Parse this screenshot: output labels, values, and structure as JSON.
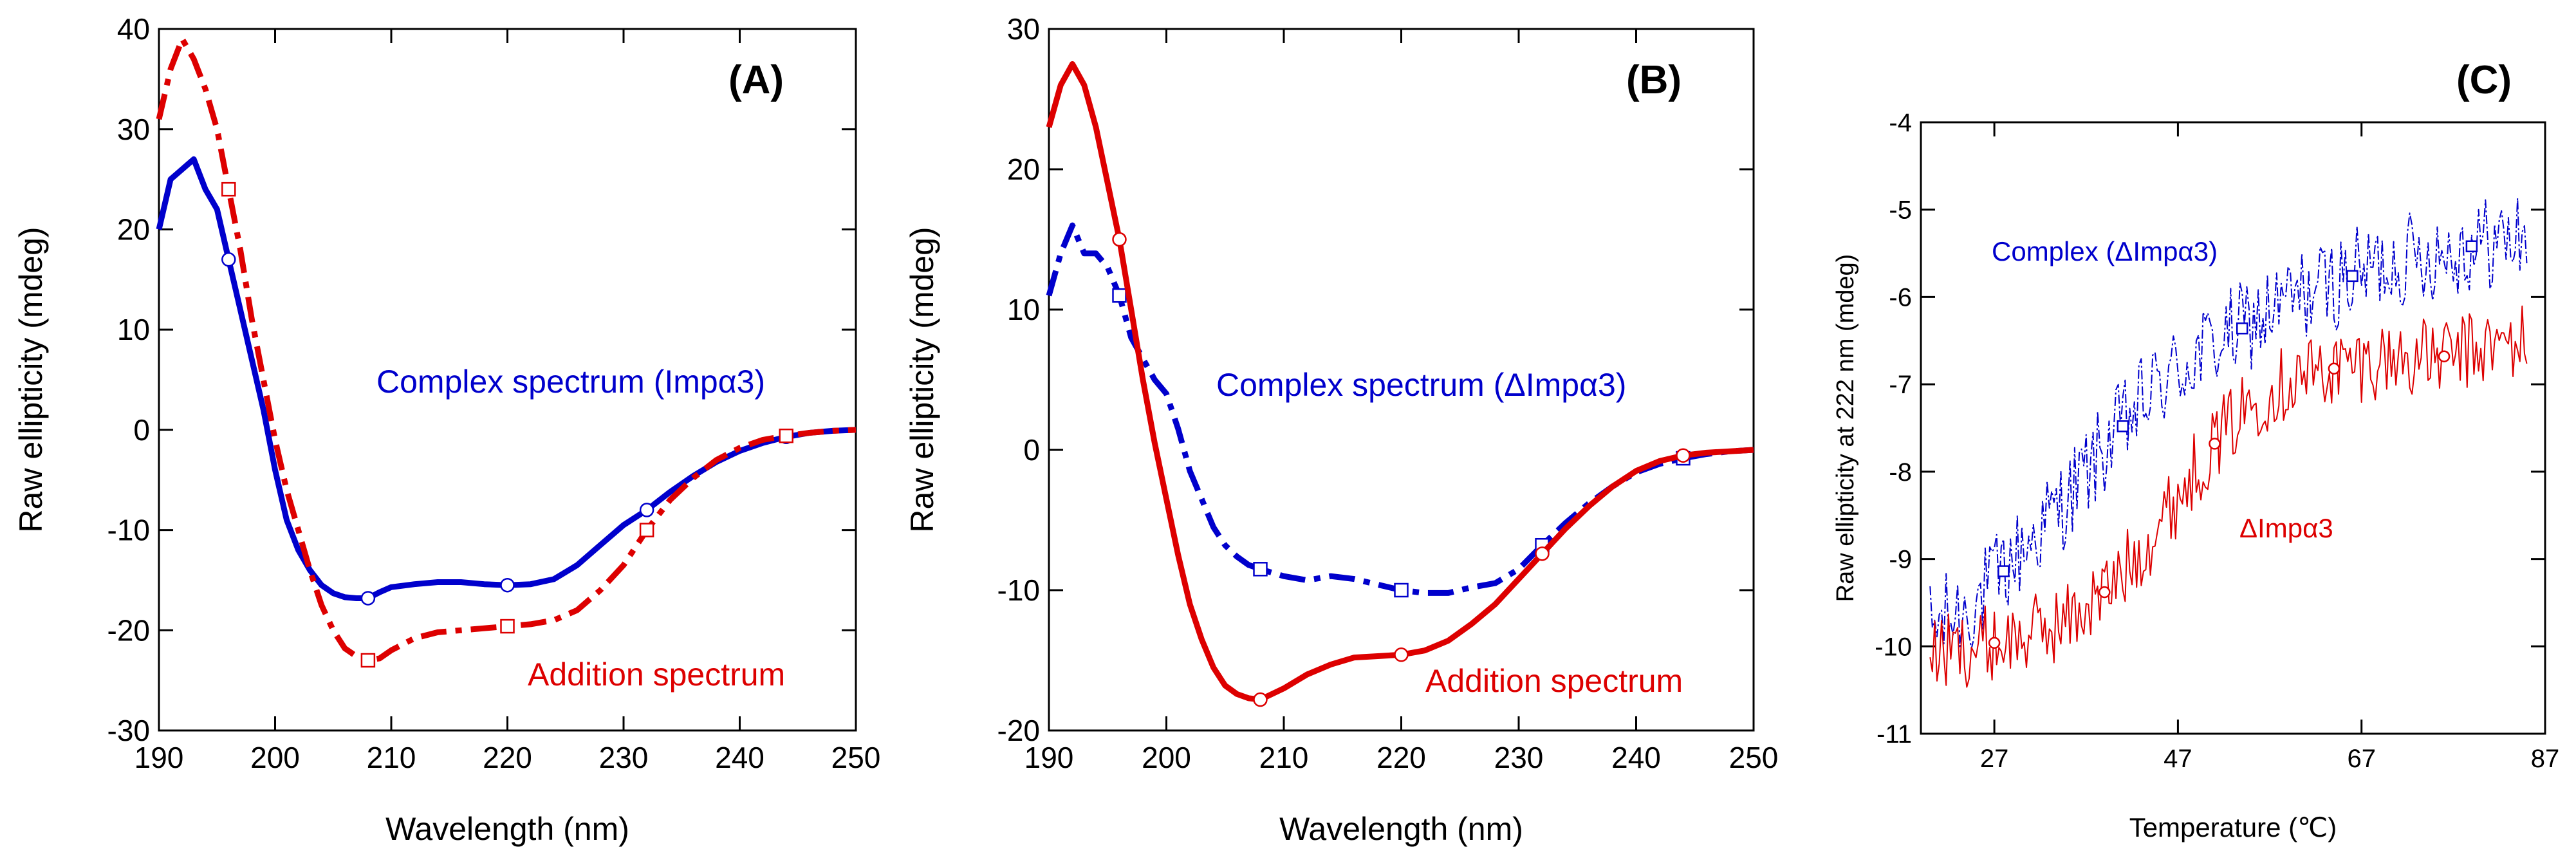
{
  "chart_data": [
    {
      "panel_label": "(A)",
      "type": "line",
      "xlabel": "Wavelength (nm)",
      "ylabel": "Raw ellipticity (mdeg)",
      "xlim": [
        190,
        250
      ],
      "ylim": [
        -30,
        40
      ],
      "xticks": [
        190,
        200,
        210,
        220,
        230,
        240,
        250
      ],
      "yticks": [
        -30,
        -20,
        -10,
        0,
        10,
        20,
        30,
        40
      ],
      "series": [
        {
          "name": "Complex spectrum (Impα3)",
          "color": "#0000cc",
          "dash": "solid",
          "marker": "circle",
          "marker_x": [
            196,
            208,
            220,
            232,
            244
          ],
          "x": [
            190,
            191,
            192,
            193,
            194,
            195,
            196,
            197,
            198,
            199,
            200,
            201,
            202,
            203,
            204,
            205,
            206,
            207,
            208,
            209,
            210,
            212,
            214,
            216,
            218,
            220,
            222,
            224,
            226,
            228,
            230,
            232,
            234,
            236,
            238,
            240,
            242,
            244,
            246,
            248,
            250
          ],
          "y": [
            20,
            25,
            26,
            27,
            24,
            22,
            17,
            12,
            7,
            2,
            -4,
            -9,
            -12,
            -14,
            -15.5,
            -16.3,
            -16.7,
            -16.8,
            -16.8,
            -16.2,
            -15.7,
            -15.4,
            -15.2,
            -15.2,
            -15.4,
            -15.5,
            -15.4,
            -14.9,
            -13.5,
            -11.5,
            -9.5,
            -8,
            -6.2,
            -4.6,
            -3.2,
            -2.1,
            -1.3,
            -0.7,
            -0.3,
            -0.1,
            0
          ]
        },
        {
          "name": "Addition spectrum",
          "color": "#dd0000",
          "dash": "dashdot",
          "marker": "square",
          "marker_x": [
            196,
            208,
            220,
            232,
            244
          ],
          "x": [
            190,
            191,
            192,
            193,
            194,
            195,
            196,
            197,
            198,
            199,
            200,
            201,
            202,
            203,
            204,
            205,
            206,
            207,
            208,
            209,
            210,
            212,
            214,
            216,
            218,
            220,
            222,
            224,
            226,
            228,
            230,
            232,
            234,
            236,
            238,
            240,
            242,
            244,
            246,
            248,
            250
          ],
          "y": [
            31,
            36,
            39,
            37,
            34,
            30,
            24,
            18,
            11,
            5,
            -1,
            -6,
            -10,
            -14,
            -17.5,
            -20,
            -21.8,
            -22.6,
            -23,
            -22.8,
            -22,
            -20.8,
            -20.2,
            -20,
            -19.8,
            -19.6,
            -19.4,
            -19,
            -18,
            -16,
            -13.5,
            -10,
            -7,
            -4.8,
            -3,
            -1.8,
            -1,
            -0.6,
            -0.3,
            -0.1,
            0
          ]
        }
      ],
      "annotations": [
        {
          "text": "Complex spectrum (Impα3)",
          "color": "#0000cc"
        },
        {
          "text": "Addition spectrum",
          "color": "#dd0000"
        }
      ]
    },
    {
      "panel_label": "(B)",
      "type": "line",
      "xlabel": "Wavelength (nm)",
      "ylabel": "Raw ellipticity (mdeg)",
      "xlim": [
        190,
        250
      ],
      "ylim": [
        -20,
        30
      ],
      "xticks": [
        190,
        200,
        210,
        220,
        230,
        240,
        250
      ],
      "yticks": [
        -20,
        -10,
        0,
        10,
        20,
        30
      ],
      "series": [
        {
          "name": "Complex spectrum (ΔImpα3)",
          "color": "#0000cc",
          "dash": "dashdot",
          "marker": "square",
          "marker_x": [
            196,
            208,
            220,
            232,
            244
          ],
          "x": [
            190,
            191,
            192,
            193,
            194,
            195,
            196,
            197,
            198,
            199,
            200,
            201,
            202,
            203,
            204,
            205,
            206,
            207,
            208,
            210,
            212,
            214,
            216,
            218,
            220,
            222,
            224,
            226,
            228,
            230,
            232,
            234,
            236,
            238,
            240,
            242,
            244,
            246,
            248,
            250
          ],
          "y": [
            11,
            14,
            16,
            14,
            14,
            13,
            11,
            8,
            6.5,
            5,
            4,
            1.5,
            -1.5,
            -3.5,
            -5.5,
            -6.8,
            -7.6,
            -8.2,
            -8.5,
            -9,
            -9.3,
            -9,
            -9.2,
            -9.6,
            -10,
            -10.2,
            -10.2,
            -9.8,
            -9.5,
            -8.5,
            -6.8,
            -5.2,
            -3.8,
            -2.6,
            -1.6,
            -1,
            -0.6,
            -0.3,
            -0.1,
            0
          ]
        },
        {
          "name": "Addition spectrum",
          "color": "#dd0000",
          "dash": "solid",
          "marker": "circle",
          "marker_x": [
            196,
            208,
            220,
            232,
            244
          ],
          "x": [
            190,
            191,
            192,
            193,
            194,
            195,
            196,
            197,
            198,
            199,
            200,
            201,
            202,
            203,
            204,
            205,
            206,
            207,
            208,
            210,
            212,
            214,
            216,
            218,
            220,
            222,
            224,
            226,
            228,
            230,
            232,
            234,
            236,
            238,
            240,
            242,
            244,
            246,
            248,
            250
          ],
          "y": [
            23,
            26,
            27.5,
            26,
            23,
            19,
            15,
            10,
            5,
            0.5,
            -3.5,
            -7.5,
            -11,
            -13.5,
            -15.5,
            -16.8,
            -17.4,
            -17.7,
            -17.8,
            -17,
            -16,
            -15.3,
            -14.8,
            -14.7,
            -14.6,
            -14.3,
            -13.6,
            -12.4,
            -11,
            -9.2,
            -7.4,
            -5.6,
            -4,
            -2.6,
            -1.5,
            -0.8,
            -0.4,
            -0.2,
            -0.1,
            0
          ]
        }
      ],
      "annotations": [
        {
          "text": "Complex spectrum (ΔImpα3)",
          "color": "#0000cc"
        },
        {
          "text": "Addition spectrum",
          "color": "#dd0000"
        }
      ]
    },
    {
      "panel_label": "(C)",
      "type": "line",
      "xlabel": "Temperature (℃)",
      "ylabel": "Raw ellipticity at 222 nm (mdeg)",
      "xlim": [
        19,
        87
      ],
      "ylim": [
        -11,
        -4
      ],
      "xticks": [
        27,
        47,
        67,
        87
      ],
      "yticks": [
        -11,
        -10,
        -9,
        -8,
        -7,
        -6,
        -5,
        -4
      ],
      "series": [
        {
          "name": "Complex (ΔImpα3)",
          "color": "#0000cc",
          "noisy": true,
          "marker": "square",
          "marker_x": [
            28,
            41,
            54,
            66,
            79
          ],
          "x": [
            20,
            25,
            30,
            35,
            40,
            45,
            50,
            55,
            60,
            65,
            70,
            75,
            80,
            85
          ],
          "y": [
            -9.8,
            -9.5,
            -8.9,
            -8.3,
            -7.6,
            -7.0,
            -6.6,
            -6.3,
            -6.0,
            -5.8,
            -5.6,
            -5.5,
            -5.4,
            -5.3
          ]
        },
        {
          "name": "ΔImpα3",
          "color": "#dd0000",
          "noisy": true,
          "marker": "circle",
          "marker_x": [
            27,
            39,
            51,
            64,
            76
          ],
          "x": [
            20,
            25,
            30,
            35,
            40,
            45,
            50,
            55,
            60,
            65,
            70,
            75,
            80,
            85
          ],
          "y": [
            -10.1,
            -10.0,
            -9.9,
            -9.7,
            -9.3,
            -8.6,
            -7.8,
            -7.2,
            -6.9,
            -6.8,
            -6.7,
            -6.7,
            -6.6,
            -6.5
          ]
        }
      ],
      "annotations": [
        {
          "text": "Complex (ΔImpα3)",
          "color": "#0000cc"
        },
        {
          "text": "ΔImpα3",
          "color": "#dd0000"
        }
      ]
    }
  ]
}
